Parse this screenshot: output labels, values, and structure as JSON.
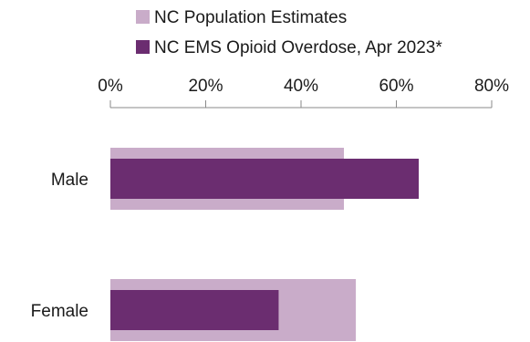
{
  "chart_data": {
    "type": "bar",
    "orientation": "horizontal",
    "categories": [
      "Male",
      "Female"
    ],
    "series": [
      {
        "name": "NC Population Estimates",
        "values": [
          49,
          51.5
        ],
        "color": "#c9acc9"
      },
      {
        "name": "NC EMS Opioid Overdose, Apr 2023*",
        "values": [
          64.7,
          35.3
        ],
        "color": "#6b2d70"
      }
    ],
    "xlim": [
      0,
      80
    ],
    "xticks": [
      0,
      20,
      40,
      60,
      80
    ],
    "tick_suffix": "%",
    "axis_position": "top",
    "legend_position": "top",
    "grid": false
  }
}
